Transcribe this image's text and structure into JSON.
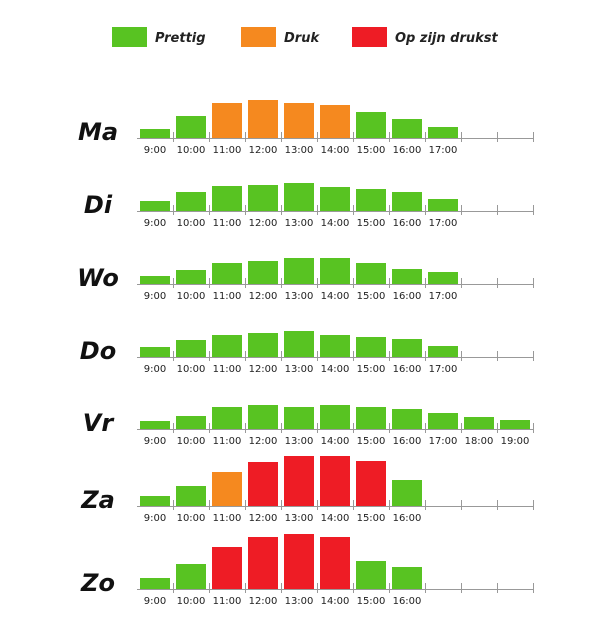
{
  "legend": [
    {
      "name": "Prettig",
      "color": "#58c322"
    },
    {
      "name": "Druk",
      "color": "#f5891f"
    },
    {
      "name": "Op zijn drukst",
      "color": "#ee1c25"
    }
  ],
  "chart_data": [
    {
      "type": "bar",
      "title": "Ma",
      "categories": [
        "9:00",
        "10:00",
        "11:00",
        "12:00",
        "13:00",
        "14:00",
        "15:00",
        "16:00",
        "17:00"
      ],
      "values": [
        9,
        22,
        35,
        38,
        35,
        33,
        26,
        19,
        11
      ],
      "colors": [
        "#58c322",
        "#58c322",
        "#f5891f",
        "#f5891f",
        "#f5891f",
        "#f5891f",
        "#58c322",
        "#58c322",
        "#58c322"
      ]
    },
    {
      "type": "bar",
      "title": "Di",
      "categories": [
        "9:00",
        "10:00",
        "11:00",
        "12:00",
        "13:00",
        "14:00",
        "15:00",
        "16:00",
        "17:00"
      ],
      "values": [
        10,
        19,
        25,
        26,
        28,
        24,
        22,
        19,
        12
      ],
      "colors": [
        "#58c322",
        "#58c322",
        "#58c322",
        "#58c322",
        "#58c322",
        "#58c322",
        "#58c322",
        "#58c322",
        "#58c322"
      ]
    },
    {
      "type": "bar",
      "title": "Wo",
      "categories": [
        "9:00",
        "10:00",
        "11:00",
        "12:00",
        "13:00",
        "14:00",
        "15:00",
        "16:00",
        "17:00"
      ],
      "values": [
        8,
        14,
        21,
        23,
        26,
        26,
        21,
        15,
        12
      ],
      "colors": [
        "#58c322",
        "#58c322",
        "#58c322",
        "#58c322",
        "#58c322",
        "#58c322",
        "#58c322",
        "#58c322",
        "#58c322"
      ]
    },
    {
      "type": "bar",
      "title": "Do",
      "categories": [
        "9:00",
        "10:00",
        "11:00",
        "12:00",
        "13:00",
        "14:00",
        "15:00",
        "16:00",
        "17:00"
      ],
      "values": [
        10,
        17,
        22,
        24,
        26,
        22,
        20,
        18,
        11
      ],
      "colors": [
        "#58c322",
        "#58c322",
        "#58c322",
        "#58c322",
        "#58c322",
        "#58c322",
        "#58c322",
        "#58c322",
        "#58c322"
      ]
    },
    {
      "type": "bar",
      "title": "Vr",
      "categories": [
        "9:00",
        "10:00",
        "11:00",
        "12:00",
        "13:00",
        "14:00",
        "15:00",
        "16:00",
        "17:00",
        "18:00",
        "19:00"
      ],
      "values": [
        8,
        13,
        22,
        24,
        22,
        24,
        22,
        20,
        16,
        12,
        9
      ],
      "colors": [
        "#58c322",
        "#58c322",
        "#58c322",
        "#58c322",
        "#58c322",
        "#58c322",
        "#58c322",
        "#58c322",
        "#58c322",
        "#58c322",
        "#58c322"
      ]
    },
    {
      "type": "bar",
      "title": "Za",
      "categories": [
        "9:00",
        "10:00",
        "11:00",
        "12:00",
        "13:00",
        "14:00",
        "15:00",
        "16:00"
      ],
      "values": [
        10,
        20,
        34,
        44,
        50,
        50,
        45,
        26
      ],
      "colors": [
        "#58c322",
        "#58c322",
        "#f5891f",
        "#ee1c25",
        "#ee1c25",
        "#ee1c25",
        "#ee1c25",
        "#58c322"
      ]
    },
    {
      "type": "bar",
      "title": "Zo",
      "categories": [
        "9:00",
        "10:00",
        "11:00",
        "12:00",
        "13:00",
        "14:00",
        "15:00",
        "16:00"
      ],
      "values": [
        11,
        25,
        42,
        52,
        55,
        52,
        28,
        22
      ],
      "colors": [
        "#58c322",
        "#58c322",
        "#ee1c25",
        "#ee1c25",
        "#ee1c25",
        "#ee1c25",
        "#58c322",
        "#58c322"
      ]
    }
  ]
}
